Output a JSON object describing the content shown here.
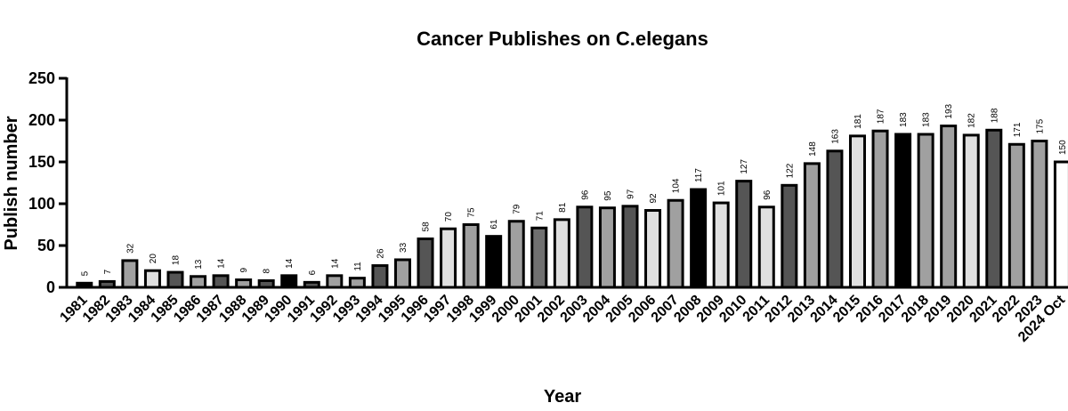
{
  "chart_data": {
    "type": "bar",
    "title": "Cancer Publishes on C.elegans",
    "xlabel": "Year",
    "ylabel": "Publish number",
    "ylim": [
      0,
      250
    ],
    "yticks": [
      0,
      50,
      100,
      150,
      200,
      250
    ],
    "grid": false,
    "categories": [
      "1981",
      "1982",
      "1983",
      "1984",
      "1985",
      "1986",
      "1987",
      "1988",
      "1989",
      "1990",
      "1991",
      "1992",
      "1993",
      "1994",
      "1995",
      "1996",
      "1997",
      "1998",
      "1999",
      "2000",
      "2001",
      "2002",
      "2003",
      "2004",
      "2005",
      "2006",
      "2007",
      "2008",
      "2009",
      "2010",
      "2011",
      "2012",
      "2013",
      "2014",
      "2015",
      "2016",
      "2017",
      "2018",
      "2019",
      "2020",
      "2021",
      "2022",
      "2023",
      "2024 Oct"
    ],
    "values": [
      5,
      7,
      32,
      20,
      18,
      13,
      14,
      9,
      8,
      14,
      6,
      14,
      11,
      26,
      33,
      58,
      70,
      75,
      61,
      79,
      71,
      81,
      96,
      95,
      97,
      92,
      104,
      117,
      101,
      127,
      96,
      122,
      148,
      163,
      181,
      187,
      183,
      183,
      193,
      182,
      188,
      171,
      175,
      150
    ],
    "colors": [
      "#000000",
      "#555555",
      "#a0a0a0",
      "#e0e0e0",
      "#555555",
      "#a0a0a0",
      "#555555",
      "#a0a0a0",
      "#555555",
      "#000000",
      "#555555",
      "#a0a0a0",
      "#a0a0a0",
      "#555555",
      "#a0a0a0",
      "#555555",
      "#e0e0e0",
      "#a0a0a0",
      "#000000",
      "#a0a0a0",
      "#707070",
      "#e0e0e0",
      "#555555",
      "#a0a0a0",
      "#555555",
      "#e0e0e0",
      "#a0a0a0",
      "#000000",
      "#e0e0e0",
      "#555555",
      "#e0e0e0",
      "#555555",
      "#a0a0a0",
      "#555555",
      "#e0e0e0",
      "#a0a0a0",
      "#000000",
      "#a0a0a0",
      "#a0a0a0",
      "#e0e0e0",
      "#555555",
      "#a0a0a0",
      "#a0a0a0",
      "#ffffff"
    ]
  }
}
